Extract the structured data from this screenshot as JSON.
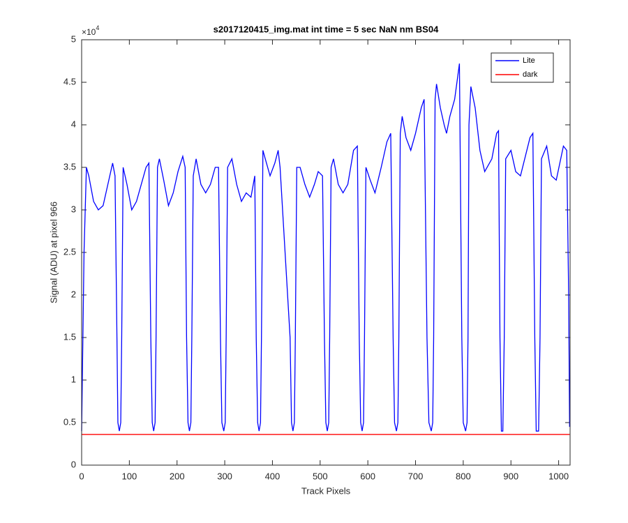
{
  "chart_data": {
    "type": "line",
    "title": "s2017120415_img.mat int time = 5 sec  NaN nm BS04",
    "xlabel": "Track Pixels",
    "ylabel": "Signal (ADU) at pixel 966",
    "y_multiplier": {
      "base": "×10",
      "exponent": "4"
    },
    "xlim": [
      0,
      1024
    ],
    "ylim": [
      0,
      50000
    ],
    "xticks": [
      0,
      100,
      200,
      300,
      400,
      500,
      600,
      700,
      800,
      900,
      1000
    ],
    "yticks": [
      0,
      {
        "value": 5000,
        "label": "0.5"
      },
      {
        "value": 10000,
        "label": "1"
      },
      {
        "value": 15000,
        "label": "1.5"
      },
      {
        "value": 20000,
        "label": "2"
      },
      {
        "value": 25000,
        "label": "2.5"
      },
      {
        "value": 30000,
        "label": "3"
      },
      {
        "value": 35000,
        "label": "3.5"
      },
      {
        "value": 40000,
        "label": "4"
      },
      {
        "value": 45000,
        "label": "4.5"
      },
      {
        "value": 50000,
        "label": "5"
      }
    ],
    "legend_position": "top-right",
    "series": [
      {
        "name": "Lite",
        "color": "#0000ff",
        "x": [
          0,
          5,
          10,
          15,
          25,
          35,
          45,
          55,
          65,
          70,
          74,
          76,
          79,
          82,
          84,
          87,
          95,
          105,
          115,
          125,
          135,
          141,
          145,
          148,
          151,
          154,
          156,
          159,
          163,
          172,
          182,
          192,
          202,
          212,
          217,
          220,
          223,
          226,
          229,
          231,
          234,
          240,
          250,
          260,
          270,
          280,
          287,
          291,
          294,
          298,
          301,
          303,
          306,
          315,
          325,
          335,
          345,
          355,
          363,
          366,
          369,
          372,
          375,
          377,
          380,
          385,
          395,
          405,
          412,
          416,
          437,
          440,
          443,
          446,
          448,
          451,
          458,
          468,
          478,
          488,
          496,
          505,
          509,
          512,
          515,
          518,
          520,
          523,
          528,
          538,
          548,
          558,
          570,
          578,
          582,
          585,
          588,
          591,
          593,
          596,
          605,
          615,
          628,
          640,
          648,
          653,
          656,
          660,
          663,
          665,
          668,
          672,
          680,
          690,
          700,
          712,
          718,
          724,
          728,
          733,
          736,
          738,
          741,
          744,
          752,
          760,
          765,
          772,
          782,
          788,
          792,
          797,
          800,
          805,
          808,
          810,
          812,
          816,
          825,
          835,
          845,
          860,
          870,
          874,
          877,
          880,
          883,
          886,
          889,
          900,
          910,
          920,
          940,
          946,
          950,
          953,
          958,
          961,
          964,
          975,
          985,
          995,
          1010,
          1017,
          1021,
          1023
        ],
        "values": [
          4000,
          25000,
          35000,
          34000,
          31000,
          30000,
          30500,
          33000,
          35500,
          34000,
          15000,
          5000,
          4000,
          5000,
          15000,
          35000,
          33000,
          30000,
          31000,
          33000,
          35000,
          35500,
          15000,
          5000,
          4000,
          5000,
          15000,
          35000,
          36000,
          33500,
          30500,
          32000,
          34500,
          36300,
          35000,
          15000,
          5000,
          4000,
          5000,
          15000,
          34000,
          36000,
          33000,
          32000,
          33000,
          35000,
          35000,
          15000,
          5000,
          4000,
          5000,
          15000,
          35000,
          36000,
          33000,
          31000,
          32000,
          31500,
          34000,
          15000,
          5000,
          4000,
          5000,
          15000,
          37000,
          36000,
          34000,
          35500,
          37000,
          35000,
          15000,
          5000,
          4000,
          5000,
          15000,
          35000,
          35000,
          33000,
          31500,
          33000,
          34500,
          34000,
          15000,
          5000,
          4000,
          5000,
          15000,
          35000,
          36000,
          33000,
          32000,
          33000,
          37000,
          37500,
          15000,
          5000,
          4000,
          5000,
          15000,
          35000,
          33500,
          32000,
          35000,
          38000,
          39000,
          15000,
          5000,
          4000,
          5000,
          15000,
          39000,
          41000,
          38500,
          37000,
          39000,
          42000,
          43000,
          15000,
          5000,
          4000,
          5000,
          15000,
          43000,
          44800,
          42000,
          40000,
          39000,
          41000,
          43000,
          45500,
          47200,
          15000,
          5000,
          4000,
          5000,
          15000,
          40000,
          44500,
          42000,
          37000,
          34500,
          36000,
          39000,
          39300,
          15000,
          4000,
          4000,
          15000,
          36000,
          37000,
          34500,
          34000,
          38500,
          39000,
          15000,
          4000,
          4000,
          15000,
          36000,
          37500,
          34000,
          33500,
          37500,
          37000,
          20000,
          4500
        ]
      },
      {
        "name": "dark",
        "color": "#ff0000",
        "x": [
          0,
          1023
        ],
        "values": [
          3600,
          3600
        ]
      }
    ]
  }
}
